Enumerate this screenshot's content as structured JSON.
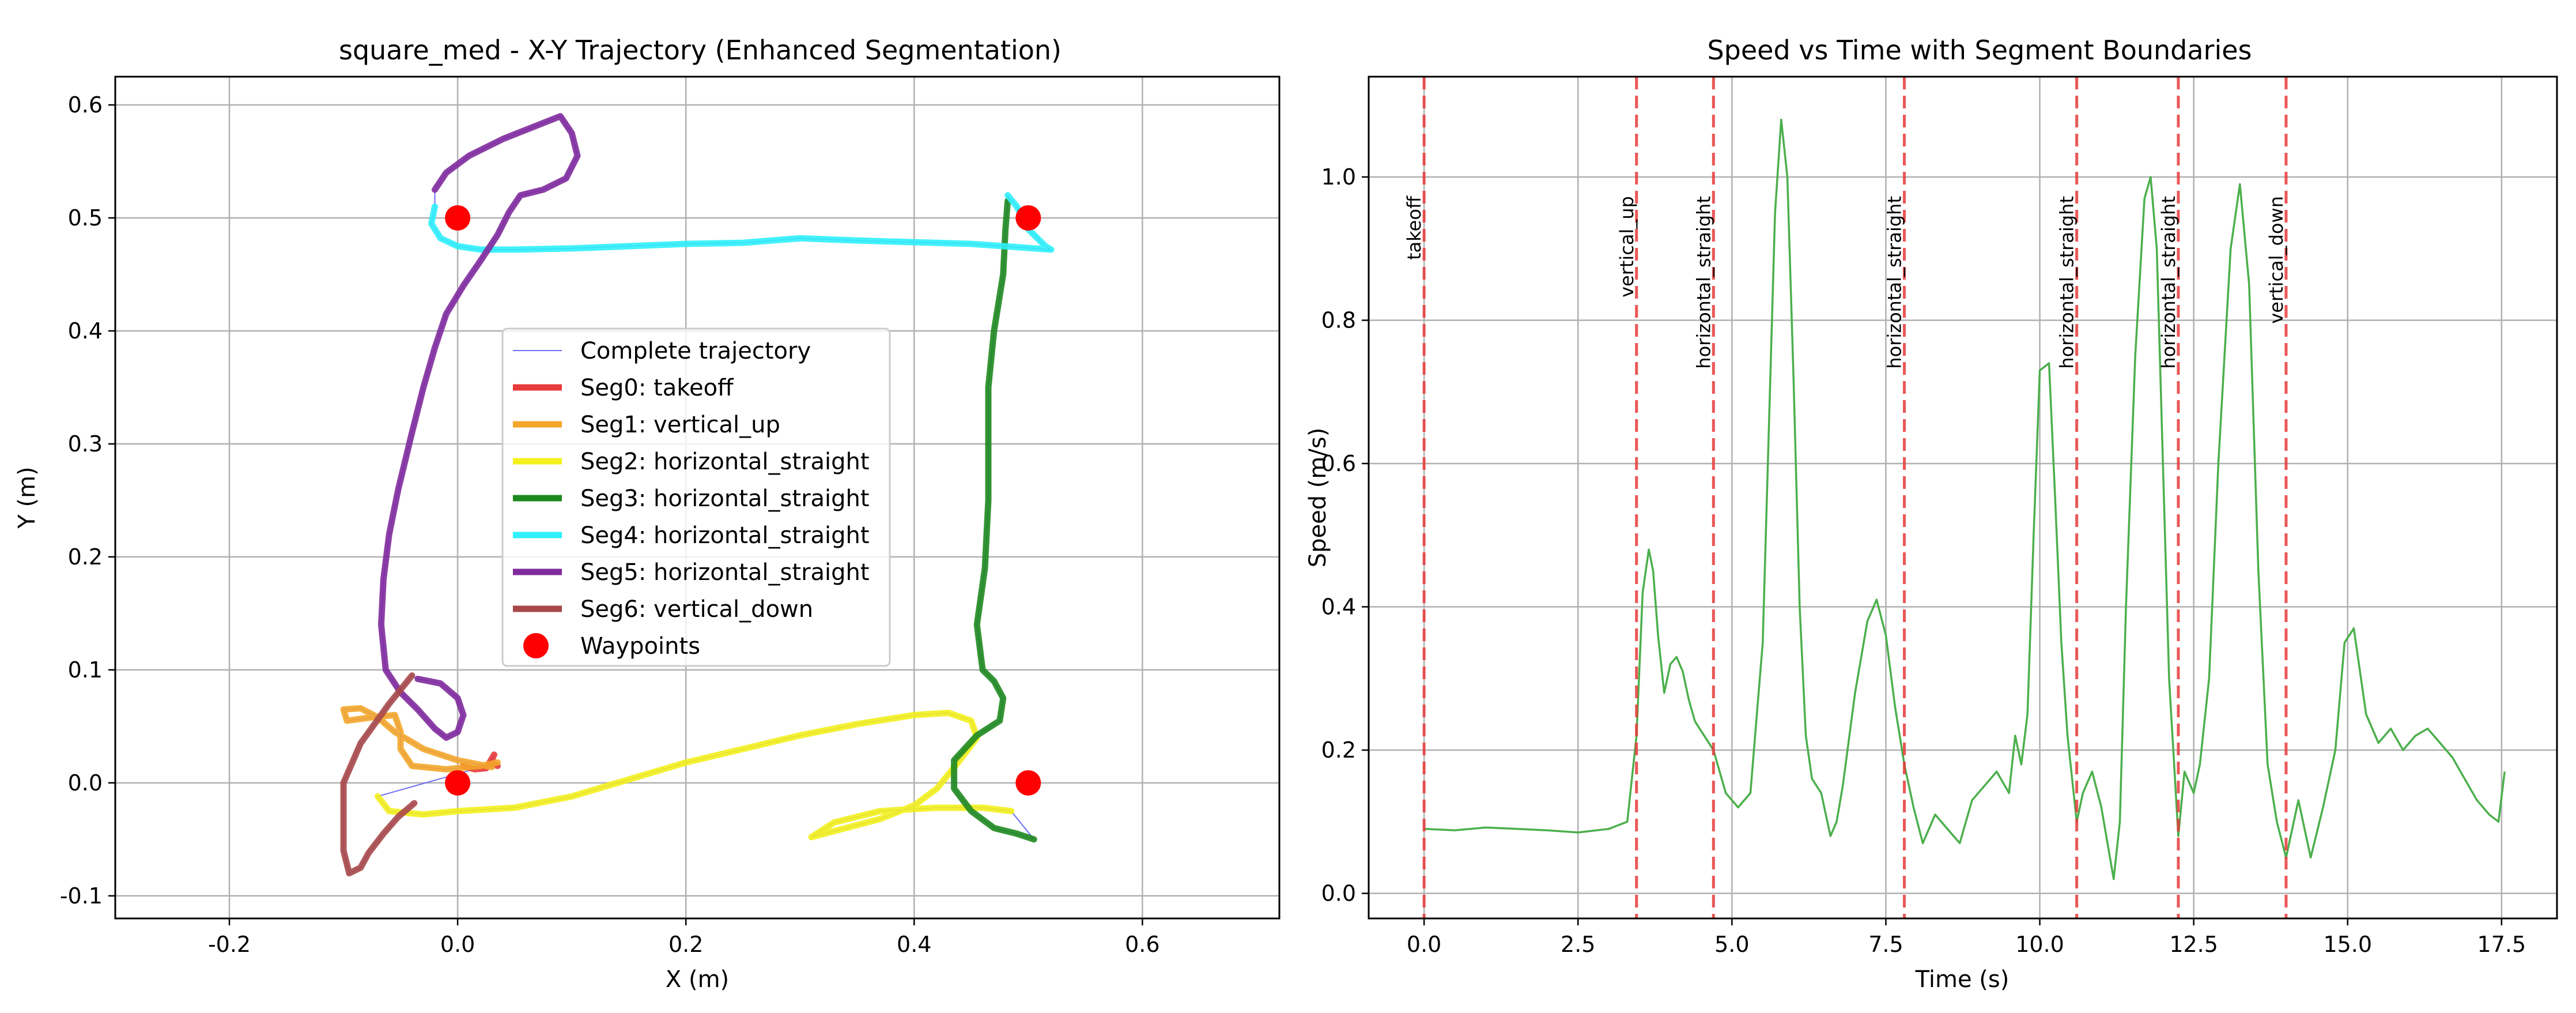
{
  "chart_data": [
    {
      "type": "line",
      "title": "square_med - X-Y Trajectory (Enhanced Segmentation)",
      "xlabel": "X (m)",
      "ylabel": "Y (m)",
      "xlim": [
        -0.3,
        0.72
      ],
      "ylim": [
        -0.12,
        0.625
      ],
      "xticks": [
        -0.2,
        0.0,
        0.2,
        0.4,
        0.6
      ],
      "xtick_labels": [
        "-0.2",
        "0.0",
        "0.2",
        "0.4",
        "0.6"
      ],
      "yticks": [
        -0.1,
        0.0,
        0.1,
        0.2,
        0.3,
        0.4,
        0.5,
        0.6
      ],
      "ytick_labels": [
        "-0.1",
        "0.0",
        "0.1",
        "0.2",
        "0.3",
        "0.4",
        "0.5",
        "0.6"
      ],
      "grid": true,
      "legend_position": "center",
      "legend": [
        {
          "label": "Complete trajectory",
          "color": "#6f6ff7",
          "kind": "thin-line"
        },
        {
          "label": "Seg0: takeoff",
          "color": "#e83a3a",
          "kind": "line"
        },
        {
          "label": "Seg1: vertical_up",
          "color": "#f4a62a",
          "kind": "line"
        },
        {
          "label": "Seg2: horizontal_straight",
          "color": "#f3f01c",
          "kind": "line"
        },
        {
          "label": "Seg3: horizontal_straight",
          "color": "#1e8a1e",
          "kind": "line"
        },
        {
          "label": "Seg4: horizontal_straight",
          "color": "#2ff0fa",
          "kind": "line"
        },
        {
          "label": "Seg5: horizontal_straight",
          "color": "#7f2a9c",
          "kind": "line"
        },
        {
          "label": "Seg6: vertical_down",
          "color": "#a84848",
          "kind": "line"
        },
        {
          "label": "Waypoints",
          "color": "#ff0000",
          "kind": "marker"
        }
      ],
      "series": [
        {
          "name": "Seg0: takeoff",
          "color": "#e83a3a",
          "points": [
            [
              0.005,
              0.015
            ],
            [
              0.015,
              0.012
            ],
            [
              0.025,
              0.013
            ],
            [
              0.03,
              0.02
            ],
            [
              0.032,
              0.025
            ],
            [
              0.028,
              0.018
            ],
            [
              0.035,
              0.015
            ]
          ]
        },
        {
          "name": "Seg1: vertical_up",
          "color": "#f4a62a",
          "points": [
            [
              0.03,
              0.014
            ],
            [
              0.0,
              0.02
            ],
            [
              -0.03,
              0.03
            ],
            [
              -0.055,
              0.045
            ],
            [
              -0.07,
              0.058
            ],
            [
              -0.085,
              0.066
            ],
            [
              -0.1,
              0.065
            ],
            [
              -0.097,
              0.055
            ],
            [
              -0.075,
              0.058
            ],
            [
              -0.055,
              0.06
            ],
            [
              -0.05,
              0.045
            ],
            [
              -0.05,
              0.03
            ],
            [
              -0.04,
              0.015
            ],
            [
              -0.01,
              0.012
            ],
            [
              0.02,
              0.015
            ],
            [
              0.035,
              0.018
            ]
          ]
        },
        {
          "name": "Seg2: horizontal_straight",
          "color": "#f3f01c",
          "points": [
            [
              -0.07,
              -0.012
            ],
            [
              -0.06,
              -0.025
            ],
            [
              -0.03,
              -0.028
            ],
            [
              0.0,
              -0.025
            ],
            [
              0.05,
              -0.022
            ],
            [
              0.1,
              -0.012
            ],
            [
              0.15,
              0.003
            ],
            [
              0.2,
              0.018
            ],
            [
              0.25,
              0.03
            ],
            [
              0.3,
              0.042
            ],
            [
              0.35,
              0.052
            ],
            [
              0.4,
              0.06
            ],
            [
              0.43,
              0.062
            ],
            [
              0.45,
              0.055
            ],
            [
              0.455,
              0.04
            ],
            [
              0.44,
              0.02
            ],
            [
              0.42,
              -0.005
            ],
            [
              0.4,
              -0.02
            ],
            [
              0.37,
              -0.032
            ],
            [
              0.34,
              -0.04
            ],
            [
              0.31,
              -0.048
            ],
            [
              0.33,
              -0.035
            ],
            [
              0.37,
              -0.025
            ],
            [
              0.42,
              -0.022
            ],
            [
              0.46,
              -0.022
            ],
            [
              0.485,
              -0.025
            ]
          ]
        },
        {
          "name": "Seg3: horizontal_straight",
          "color": "#1e8a1e",
          "points": [
            [
              0.505,
              -0.05
            ],
            [
              0.49,
              -0.045
            ],
            [
              0.47,
              -0.04
            ],
            [
              0.45,
              -0.025
            ],
            [
              0.435,
              -0.005
            ],
            [
              0.435,
              0.02
            ],
            [
              0.455,
              0.042
            ],
            [
              0.475,
              0.055
            ],
            [
              0.478,
              0.075
            ],
            [
              0.47,
              0.09
            ],
            [
              0.46,
              0.1
            ],
            [
              0.455,
              0.14
            ],
            [
              0.462,
              0.19
            ],
            [
              0.465,
              0.25
            ],
            [
              0.465,
              0.3
            ],
            [
              0.465,
              0.35
            ],
            [
              0.47,
              0.4
            ],
            [
              0.478,
              0.45
            ],
            [
              0.48,
              0.49
            ],
            [
              0.482,
              0.515
            ]
          ]
        },
        {
          "name": "Seg4: horizontal_straight",
          "color": "#2ff0fa",
          "points": [
            [
              0.482,
              0.52
            ],
            [
              0.49,
              0.51
            ],
            [
              0.5,
              0.49
            ],
            [
              0.515,
              0.475
            ],
            [
              0.52,
              0.472
            ],
            [
              0.45,
              0.477
            ],
            [
              0.35,
              0.48
            ],
            [
              0.3,
              0.482
            ],
            [
              0.25,
              0.478
            ],
            [
              0.2,
              0.477
            ],
            [
              0.15,
              0.475
            ],
            [
              0.1,
              0.473
            ],
            [
              0.05,
              0.472
            ],
            [
              0.02,
              0.472
            ],
            [
              0.0,
              0.475
            ],
            [
              -0.015,
              0.482
            ],
            [
              -0.023,
              0.495
            ],
            [
              -0.02,
              0.51
            ]
          ]
        },
        {
          "name": "Seg5: horizontal_straight",
          "color": "#7f2a9c",
          "points": [
            [
              -0.02,
              0.525
            ],
            [
              -0.01,
              0.54
            ],
            [
              0.01,
              0.555
            ],
            [
              0.04,
              0.57
            ],
            [
              0.07,
              0.582
            ],
            [
              0.09,
              0.59
            ],
            [
              0.1,
              0.575
            ],
            [
              0.105,
              0.555
            ],
            [
              0.095,
              0.535
            ],
            [
              0.075,
              0.525
            ],
            [
              0.055,
              0.52
            ],
            [
              0.045,
              0.505
            ],
            [
              0.035,
              0.485
            ],
            [
              0.02,
              0.462
            ],
            [
              0.005,
              0.44
            ],
            [
              -0.01,
              0.415
            ],
            [
              -0.02,
              0.385
            ],
            [
              -0.03,
              0.35
            ],
            [
              -0.04,
              0.31
            ],
            [
              -0.052,
              0.26
            ],
            [
              -0.06,
              0.22
            ],
            [
              -0.065,
              0.18
            ],
            [
              -0.067,
              0.14
            ],
            [
              -0.063,
              0.1
            ],
            [
              -0.05,
              0.08
            ],
            [
              -0.035,
              0.065
            ],
            [
              -0.02,
              0.048
            ],
            [
              -0.01,
              0.04
            ],
            [
              0.0,
              0.045
            ],
            [
              0.005,
              0.06
            ],
            [
              0.0,
              0.075
            ],
            [
              -0.015,
              0.088
            ],
            [
              -0.035,
              0.092
            ]
          ]
        },
        {
          "name": "Seg6: vertical_down",
          "color": "#a84848",
          "points": [
            [
              -0.04,
              0.095
            ],
            [
              -0.06,
              0.07
            ],
            [
              -0.085,
              0.035
            ],
            [
              -0.1,
              0.0
            ],
            [
              -0.1,
              -0.03
            ],
            [
              -0.1,
              -0.06
            ],
            [
              -0.095,
              -0.08
            ],
            [
              -0.085,
              -0.075
            ],
            [
              -0.078,
              -0.062
            ],
            [
              -0.065,
              -0.045
            ],
            [
              -0.052,
              -0.03
            ],
            [
              -0.038,
              -0.018
            ]
          ]
        },
        {
          "name": "Waypoints",
          "color": "#ff0000",
          "kind": "scatter",
          "points": [
            [
              0.0,
              0.5
            ],
            [
              0.5,
              0.5
            ],
            [
              0.0,
              0.0
            ],
            [
              0.5,
              0.0
            ]
          ]
        }
      ]
    },
    {
      "type": "line",
      "title": "Speed vs Time with Segment Boundaries",
      "xlabel": "Time (s)",
      "ylabel": "Speed (m/s)",
      "xlim": [
        -0.9,
        18.4
      ],
      "ylim": [
        -0.035,
        1.14
      ],
      "xticks": [
        0.0,
        2.5,
        5.0,
        7.5,
        10.0,
        12.5,
        15.0,
        17.5
      ],
      "xtick_labels": [
        "0.0",
        "2.5",
        "5.0",
        "7.5",
        "10.0",
        "12.5",
        "15.0",
        "17.5"
      ],
      "yticks": [
        0.0,
        0.2,
        0.4,
        0.6,
        0.8,
        1.0
      ],
      "ytick_labels": [
        "0.0",
        "0.2",
        "0.4",
        "0.6",
        "0.8",
        "1.0"
      ],
      "grid": true,
      "line_color": "#4caf4c",
      "boundary_color": "#e83a3a",
      "boundaries": [
        {
          "t": 0.0,
          "label": "takeoff"
        },
        {
          "t": 3.45,
          "label": "vertical_up"
        },
        {
          "t": 4.7,
          "label": "horizontal_straight"
        },
        {
          "t": 7.8,
          "label": "horizontal_straight"
        },
        {
          "t": 10.6,
          "label": "horizontal_straight"
        },
        {
          "t": 12.25,
          "label": "horizontal_straight"
        },
        {
          "t": 14.0,
          "label": "vertical_down"
        }
      ],
      "series": [
        {
          "name": "",
          "color": "#4caf4c",
          "x": [
            0.0,
            0.5,
            1.0,
            1.5,
            2.0,
            2.5,
            3.0,
            3.3,
            3.45,
            3.55,
            3.65,
            3.72,
            3.8,
            3.9,
            4.0,
            4.1,
            4.2,
            4.3,
            4.4,
            4.55,
            4.7,
            4.9,
            5.1,
            5.3,
            5.5,
            5.6,
            5.7,
            5.8,
            5.9,
            6.0,
            6.1,
            6.2,
            6.3,
            6.45,
            6.6,
            6.7,
            6.8,
            7.0,
            7.2,
            7.35,
            7.5,
            7.65,
            7.8,
            7.95,
            8.1,
            8.3,
            8.5,
            8.7,
            8.9,
            9.1,
            9.3,
            9.5,
            9.6,
            9.7,
            9.8,
            9.9,
            10.0,
            10.15,
            10.25,
            10.35,
            10.45,
            10.6,
            10.7,
            10.85,
            11.0,
            11.2,
            11.3,
            11.4,
            11.55,
            11.7,
            11.8,
            11.9,
            12.0,
            12.1,
            12.25,
            12.35,
            12.5,
            12.6,
            12.75,
            12.9,
            13.1,
            13.25,
            13.4,
            13.55,
            13.7,
            13.85,
            14.0,
            14.2,
            14.4,
            14.6,
            14.8,
            14.95,
            15.1,
            15.3,
            15.5,
            15.7,
            15.9,
            16.1,
            16.3,
            16.5,
            16.7,
            16.9,
            17.1,
            17.3,
            17.45,
            17.55
          ],
          "y": [
            0.09,
            0.088,
            0.092,
            0.09,
            0.088,
            0.085,
            0.09,
            0.1,
            0.22,
            0.42,
            0.48,
            0.45,
            0.36,
            0.28,
            0.32,
            0.33,
            0.31,
            0.27,
            0.24,
            0.22,
            0.2,
            0.14,
            0.12,
            0.14,
            0.35,
            0.65,
            0.95,
            1.08,
            1.0,
            0.72,
            0.4,
            0.22,
            0.16,
            0.14,
            0.08,
            0.1,
            0.15,
            0.28,
            0.38,
            0.41,
            0.36,
            0.26,
            0.18,
            0.12,
            0.07,
            0.11,
            0.09,
            0.07,
            0.13,
            0.15,
            0.17,
            0.14,
            0.22,
            0.18,
            0.25,
            0.5,
            0.73,
            0.74,
            0.55,
            0.35,
            0.22,
            0.1,
            0.14,
            0.17,
            0.12,
            0.02,
            0.1,
            0.4,
            0.75,
            0.97,
            1.0,
            0.9,
            0.6,
            0.3,
            0.08,
            0.17,
            0.14,
            0.18,
            0.3,
            0.6,
            0.9,
            0.99,
            0.85,
            0.45,
            0.18,
            0.1,
            0.05,
            0.13,
            0.05,
            0.12,
            0.2,
            0.35,
            0.37,
            0.25,
            0.21,
            0.23,
            0.2,
            0.22,
            0.23,
            0.21,
            0.19,
            0.16,
            0.13,
            0.11,
            0.1,
            0.17
          ]
        }
      ]
    }
  ]
}
